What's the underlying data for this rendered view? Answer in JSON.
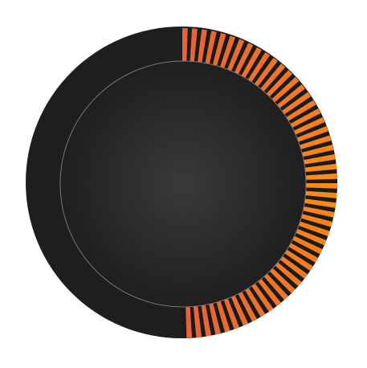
{
  "knob": {
    "value_fraction": 0.5,
    "fill_direction": "clockwise",
    "tick_count": 50,
    "colors": {
      "ring": "#1e1e1e",
      "tick_gap": "#1b1b1b",
      "tick_start": "#e5633a",
      "tick_mid": "#ff8a12",
      "tick_end": "#e5633a",
      "face_center": "#3a3a3a",
      "face_edge": "#1f1f1f",
      "face_outline": "#767676"
    }
  }
}
